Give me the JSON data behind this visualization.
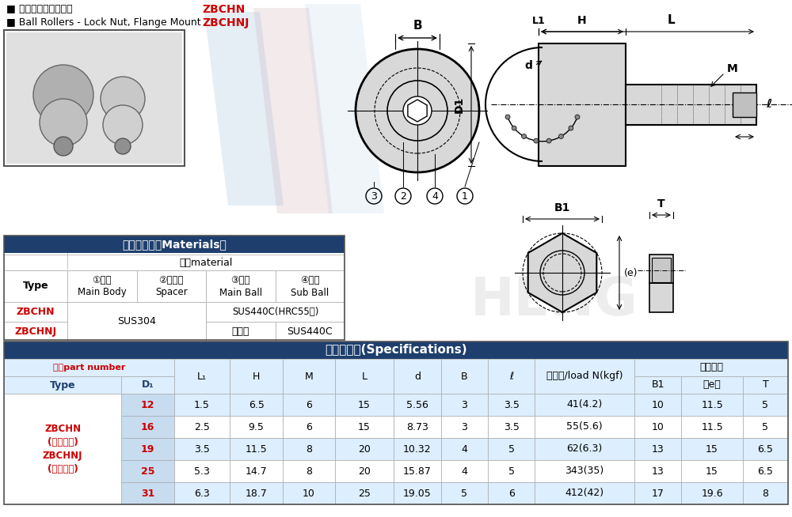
{
  "title_cn": "■ 贸帽固定型钒珠滚轮",
  "title_en": "■ Ball Rollers - Lock Nut, Flange Mount",
  "label_zbchn": "ZBCHN",
  "label_zbchnj": "ZBCHNJ",
  "bg_color": "#ffffff",
  "header_dark_blue": "#1e3f6e",
  "row_alt": "#ddeeff",
  "row_alt2": "#e8f4fc",
  "red_color": "#cc0000",
  "dark_blue_text": "#1e3f6e",
  "mat_table_title": "材质对照表（Materials）",
  "mat_col_header": "材质material",
  "mat_col1_cn": "①主体",
  "mat_col1_en": "Main Body",
  "mat_col2_cn": "②调整环",
  "mat_col2_en": "Spacer",
  "mat_col3_cn": "③主球",
  "mat_col3_en": "Main Ball",
  "mat_col4_cn": "④副球",
  "mat_col4_en": "Sub Ball",
  "mat_type": "Type",
  "mat_r1_type": "ZBCHN",
  "mat_r2_type": "ZBCHNJ",
  "mat_r1_body": "SUS304",
  "mat_r1_ball": "SUS440C(HRC55～)",
  "mat_r2_ball3": "聚缩醇",
  "mat_r2_ball4": "SUS440C",
  "spec_table_title": "参数对照表(Specifications)",
  "spec_part_label": "型式part number",
  "spec_type_label": "Type",
  "spec_d1_label": "D₁",
  "spec_left_label": "ZBCHN\n(不锈钒球)\nZBCHNJ\n(聚缩醇球)",
  "spec_rows": [
    {
      "d1": "12",
      "l1": "1.5",
      "h": "6.5",
      "m": "6",
      "l": "15",
      "d": "5.56",
      "b": "3",
      "ell": "3.5",
      "load": "41(4.2)",
      "b1": "10",
      "e": "11.5",
      "t": "5"
    },
    {
      "d1": "16",
      "l1": "2.5",
      "h": "9.5",
      "m": "6",
      "l": "15",
      "d": "8.73",
      "b": "3",
      "ell": "3.5",
      "load": "55(5.6)",
      "b1": "10",
      "e": "11.5",
      "t": "5"
    },
    {
      "d1": "19",
      "l1": "3.5",
      "h": "11.5",
      "m": "8",
      "l": "20",
      "d": "10.32",
      "b": "4",
      "ell": "5",
      "load": "62(6.3)",
      "b1": "13",
      "e": "15",
      "t": "6.5"
    },
    {
      "d1": "25",
      "l1": "5.3",
      "h": "14.7",
      "m": "8",
      "l": "20",
      "d": "15.87",
      "b": "4",
      "ell": "5",
      "load": "343(35)",
      "b1": "13",
      "e": "15",
      "t": "6.5"
    },
    {
      "d1": "31",
      "l1": "6.3",
      "h": "18.7",
      "m": "10",
      "l": "25",
      "d": "19.05",
      "b": "5",
      "ell": "6",
      "load": "412(42)",
      "b1": "17",
      "e": "19.6",
      "t": "8"
    }
  ]
}
